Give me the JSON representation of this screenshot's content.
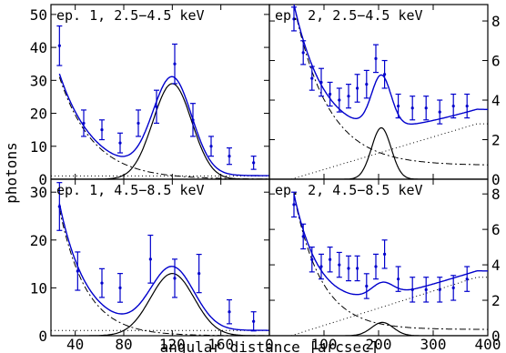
{
  "chart_data": {
    "type": "line",
    "xlabel": "angular distance [arcsec]",
    "ylabel": "photons",
    "colors": {
      "data": "#0000cc",
      "model": "#0000cc",
      "component": "#000000"
    },
    "panels": [
      {
        "id": "p11",
        "title": "ep. 1, 2.5−4.5 keV",
        "xlim": [
          20,
          200
        ],
        "ylim": [
          0,
          53
        ],
        "xticks": [
          40,
          80,
          120,
          160
        ],
        "xtick_labels": [],
        "yticks": [
          0,
          10,
          20,
          30,
          40,
          50
        ],
        "ytick_labels": [
          "0",
          "10",
          "20",
          "30",
          "40",
          "50"
        ],
        "ytick_side": "left",
        "points": [
          {
            "x": 27,
            "y": 40.5,
            "err": 6
          },
          {
            "x": 47,
            "y": 17,
            "err": 4
          },
          {
            "x": 62,
            "y": 15,
            "err": 3
          },
          {
            "x": 77,
            "y": 11,
            "err": 3
          },
          {
            "x": 92,
            "y": 17,
            "err": 4
          },
          {
            "x": 107,
            "y": 22,
            "err": 5
          },
          {
            "x": 122,
            "y": 35,
            "err": 6
          },
          {
            "x": 137,
            "y": 18,
            "err": 5
          },
          {
            "x": 152,
            "y": 10,
            "err": 3
          },
          {
            "x": 167,
            "y": 7,
            "err": 2.5
          },
          {
            "x": 187,
            "y": 5,
            "err": 2
          }
        ],
        "model": {
          "b0": 31,
          "bx0": 27,
          "bs": 28,
          "s0": 1,
          "gA": 29,
          "gx": 120,
          "gw": 16
        }
      },
      {
        "id": "p12",
        "title": "ep. 2, 2.5−4.5 keV",
        "xlim": [
          0,
          400
        ],
        "ylim": [
          0,
          8.83
        ],
        "xticks": [
          100,
          200,
          300
        ],
        "xtick_labels": [],
        "yticks": [
          0,
          2,
          4,
          6,
          8
        ],
        "ytick_labels": [
          "0",
          "2",
          "4",
          "6",
          "8"
        ],
        "ytick_side": "right",
        "points": [
          {
            "x": 45,
            "y": 8.1,
            "err": 0.6
          },
          {
            "x": 62,
            "y": 6.4,
            "err": 0.6
          },
          {
            "x": 78,
            "y": 5.1,
            "err": 0.6
          },
          {
            "x": 95,
            "y": 4.9,
            "err": 0.7
          },
          {
            "x": 111,
            "y": 4.3,
            "err": 0.6
          },
          {
            "x": 128,
            "y": 4.0,
            "err": 0.6
          },
          {
            "x": 145,
            "y": 4.2,
            "err": 0.6
          },
          {
            "x": 161,
            "y": 4.6,
            "err": 0.7
          },
          {
            "x": 178,
            "y": 4.8,
            "err": 0.7
          },
          {
            "x": 195,
            "y": 6.1,
            "err": 0.7
          },
          {
            "x": 211,
            "y": 5.3,
            "err": 0.7
          },
          {
            "x": 236,
            "y": 3.7,
            "err": 0.6
          },
          {
            "x": 262,
            "y": 3.6,
            "err": 0.6
          },
          {
            "x": 287,
            "y": 3.6,
            "err": 0.6
          },
          {
            "x": 312,
            "y": 3.4,
            "err": 0.6
          },
          {
            "x": 337,
            "y": 3.7,
            "err": 0.6
          },
          {
            "x": 362,
            "y": 3.7,
            "err": 0.6
          }
        ],
        "model": {
          "b0": 8.1,
          "bx0": 45,
          "bs": 62,
          "c0": 0.7,
          "s0": 0.0,
          "s1": 2.8,
          "sx0": 40,
          "sx1": 380,
          "gA": 2.6,
          "gx": 205,
          "gw": 18
        }
      },
      {
        "id": "p21",
        "title": "ep. 1, 4.5−8.5 keV",
        "xlim": [
          20,
          200
        ],
        "ylim": [
          0,
          32.7
        ],
        "xticks": [
          40,
          80,
          120,
          160
        ],
        "xtick_labels": [
          "40",
          "80",
          "120",
          "160"
        ],
        "yticks": [
          0,
          10,
          20,
          30
        ],
        "ytick_labels": [
          "0",
          "10",
          "20",
          "30"
        ],
        "ytick_side": "left",
        "points": [
          {
            "x": 27,
            "y": 27,
            "err": 5
          },
          {
            "x": 42,
            "y": 13.5,
            "err": 4
          },
          {
            "x": 62,
            "y": 11,
            "err": 3
          },
          {
            "x": 77,
            "y": 10,
            "err": 3
          },
          {
            "x": 102,
            "y": 16,
            "err": 5
          },
          {
            "x": 122,
            "y": 12,
            "err": 4
          },
          {
            "x": 142,
            "y": 13,
            "err": 4
          },
          {
            "x": 167,
            "y": 5,
            "err": 2.5
          },
          {
            "x": 187,
            "y": 3,
            "err": 2
          }
        ],
        "model": {
          "b0": 26.5,
          "bx0": 27,
          "bs": 22,
          "s0": 1.1,
          "gA": 13,
          "gx": 120,
          "gw": 18
        }
      },
      {
        "id": "p22",
        "title": "ep. 2, 4.5−8.5 keV",
        "xlim": [
          0,
          400
        ],
        "ylim": [
          0,
          8.83
        ],
        "xticks": [
          0,
          100,
          200,
          300,
          400
        ],
        "xtick_labels": [
          "0",
          "100",
          "200",
          "300",
          "400"
        ],
        "yticks": [
          0,
          2,
          4,
          6,
          8
        ],
        "ytick_labels": [
          "0",
          "2",
          "4",
          "6",
          "8"
        ],
        "ytick_side": "right",
        "points": [
          {
            "x": 45,
            "y": 7.4,
            "err": 0.7
          },
          {
            "x": 62,
            "y": 5.6,
            "err": 0.7
          },
          {
            "x": 78,
            "y": 4.3,
            "err": 0.7
          },
          {
            "x": 95,
            "y": 3.9,
            "err": 0.7
          },
          {
            "x": 111,
            "y": 4.3,
            "err": 0.7
          },
          {
            "x": 128,
            "y": 4.0,
            "err": 0.7
          },
          {
            "x": 145,
            "y": 3.8,
            "err": 0.7
          },
          {
            "x": 161,
            "y": 3.8,
            "err": 0.7
          },
          {
            "x": 178,
            "y": 2.8,
            "err": 0.7
          },
          {
            "x": 195,
            "y": 3.9,
            "err": 0.7
          },
          {
            "x": 211,
            "y": 4.6,
            "err": 0.8
          },
          {
            "x": 236,
            "y": 3.2,
            "err": 0.7
          },
          {
            "x": 262,
            "y": 2.6,
            "err": 0.7
          },
          {
            "x": 287,
            "y": 2.6,
            "err": 0.7
          },
          {
            "x": 312,
            "y": 2.6,
            "err": 0.7
          },
          {
            "x": 337,
            "y": 2.7,
            "err": 0.7
          },
          {
            "x": 362,
            "y": 3.2,
            "err": 0.7
          }
        ],
        "model": {
          "b0": 7.6,
          "bx0": 45,
          "bs": 50,
          "c0": 0.35,
          "s0": 0.0,
          "s1": 3.3,
          "sx0": 40,
          "sx1": 380,
          "gA": 0.75,
          "gx": 207,
          "gw": 20
        }
      }
    ]
  }
}
